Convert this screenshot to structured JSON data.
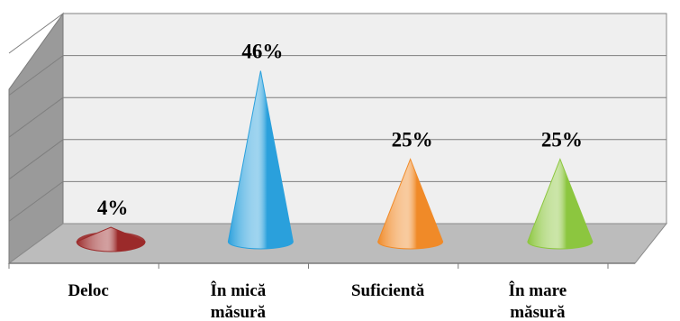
{
  "chart_data": {
    "type": "bar",
    "style": "3d-cone",
    "categories": [
      [
        "Deloc"
      ],
      [
        "În mică",
        "măsură"
      ],
      [
        "Suficientă"
      ],
      [
        "În mare",
        "măsură"
      ]
    ],
    "values": [
      4,
      46,
      25,
      25
    ],
    "data_labels": [
      "4%",
      "46%",
      "25%",
      "25%"
    ],
    "ylim": [
      0,
      50
    ],
    "grid": true,
    "legend": "none",
    "colors": [
      "#9b2a2a",
      "#2aa0dc",
      "#f08a28",
      "#8cc63f"
    ]
  }
}
